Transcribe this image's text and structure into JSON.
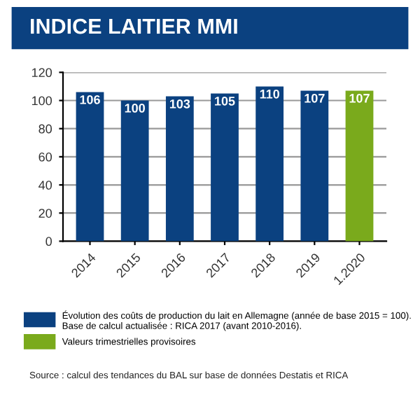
{
  "chart_data": {
    "type": "bar",
    "title": "INDICE LAITIER MMI",
    "categories": [
      "2014",
      "2015",
      "2016",
      "2017",
      "2018",
      "2019",
      "1.2020"
    ],
    "series": [
      {
        "name": "Évolution des coûts de production du lait en Allemagne (année de base 2015 = 100). Base de calcul actualisée : RICA 2017 (avant 2010-2016).",
        "color": "#0b4180",
        "values": [
          106,
          100,
          103,
          105,
          110,
          107,
          null
        ]
      },
      {
        "name": "Valeurs trimestrielles provisoires",
        "color": "#7aaa1c",
        "values": [
          null,
          null,
          null,
          null,
          null,
          null,
          107
        ]
      }
    ],
    "ylim": [
      0,
      120
    ],
    "yticks": [
      0,
      20,
      40,
      60,
      80,
      100,
      120
    ],
    "grid": "y",
    "data_labels": true,
    "legend": "bottom",
    "annotations": [
      "Source : calcul des tendances du BAL sur base de données Destatis et RICA"
    ]
  }
}
